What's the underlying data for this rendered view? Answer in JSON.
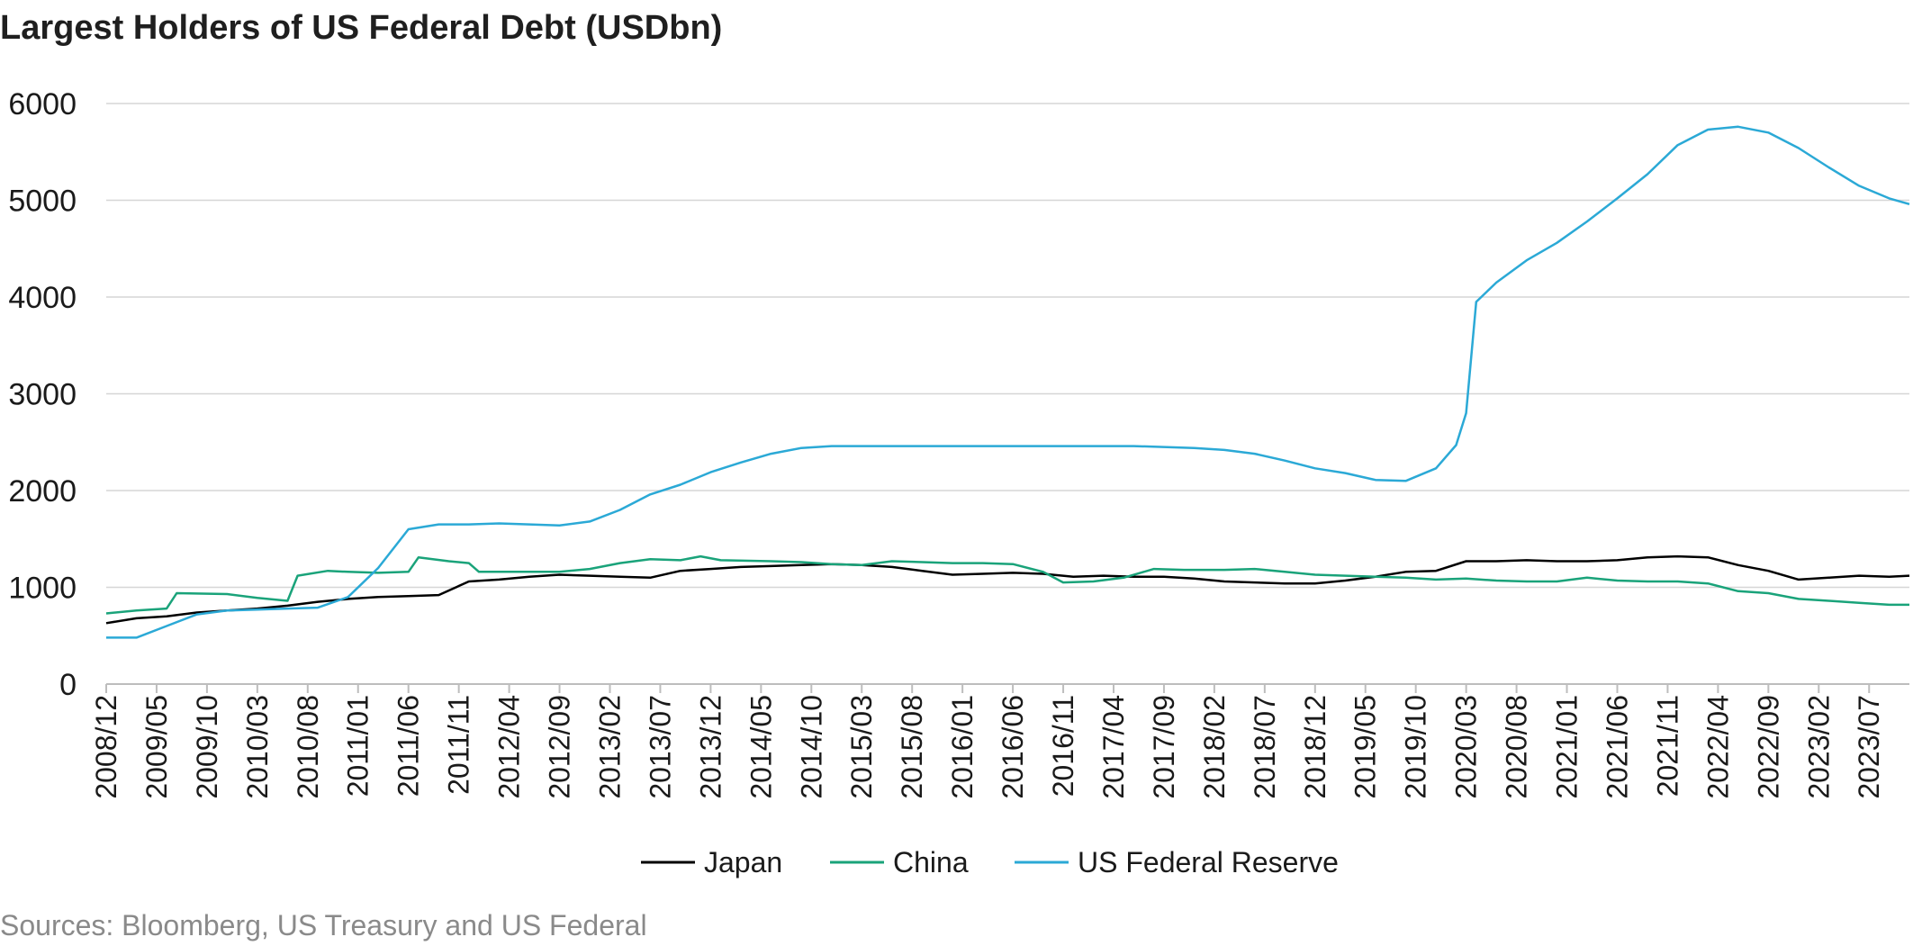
{
  "chart_data": {
    "type": "line",
    "title": "Largest Holders of US Federal Debt (USDbn)",
    "source": "Sources: Bloomberg, US Treasury and US Federal",
    "ylim": [
      0,
      6000
    ],
    "yticks": [
      0,
      1000,
      2000,
      3000,
      4000,
      5000,
      6000
    ],
    "xlim": [
      "2008/12",
      "2023/11"
    ],
    "xticks": [
      "2008/12",
      "2009/05",
      "2009/10",
      "2010/03",
      "2010/08",
      "2011/01",
      "2011/06",
      "2011/11",
      "2012/04",
      "2012/09",
      "2013/02",
      "2013/07",
      "2013/12",
      "2014/05",
      "2014/10",
      "2015/03",
      "2015/08",
      "2016/01",
      "2016/06",
      "2016/11",
      "2017/04",
      "2017/09",
      "2018/02",
      "2018/07",
      "2018/12",
      "2019/05",
      "2019/10",
      "2020/03",
      "2020/08",
      "2021/01",
      "2021/06",
      "2021/11",
      "2022/04",
      "2022/09",
      "2023/02",
      "2023/07"
    ],
    "grid": "horizontal",
    "legend": "bottom",
    "series": [
      {
        "name": "Japan",
        "color": "#000000",
        "points": [
          [
            "2008/12",
            630
          ],
          [
            "2009/03",
            680
          ],
          [
            "2009/06",
            700
          ],
          [
            "2009/09",
            740
          ],
          [
            "2009/12",
            760
          ],
          [
            "2010/03",
            780
          ],
          [
            "2010/06",
            810
          ],
          [
            "2010/09",
            850
          ],
          [
            "2010/12",
            880
          ],
          [
            "2011/03",
            900
          ],
          [
            "2011/06",
            910
          ],
          [
            "2011/09",
            920
          ],
          [
            "2011/12",
            1060
          ],
          [
            "2012/03",
            1080
          ],
          [
            "2012/06",
            1110
          ],
          [
            "2012/09",
            1130
          ],
          [
            "2012/12",
            1120
          ],
          [
            "2013/03",
            1110
          ],
          [
            "2013/06",
            1100
          ],
          [
            "2013/09",
            1170
          ],
          [
            "2013/12",
            1190
          ],
          [
            "2014/03",
            1210
          ],
          [
            "2014/06",
            1220
          ],
          [
            "2014/09",
            1230
          ],
          [
            "2014/12",
            1240
          ],
          [
            "2015/03",
            1230
          ],
          [
            "2015/06",
            1210
          ],
          [
            "2015/09",
            1170
          ],
          [
            "2015/12",
            1130
          ],
          [
            "2016/03",
            1140
          ],
          [
            "2016/06",
            1150
          ],
          [
            "2016/09",
            1140
          ],
          [
            "2016/12",
            1110
          ],
          [
            "2017/03",
            1120
          ],
          [
            "2017/06",
            1110
          ],
          [
            "2017/09",
            1110
          ],
          [
            "2017/12",
            1090
          ],
          [
            "2018/03",
            1060
          ],
          [
            "2018/06",
            1050
          ],
          [
            "2018/09",
            1040
          ],
          [
            "2018/12",
            1040
          ],
          [
            "2019/03",
            1070
          ],
          [
            "2019/06",
            1110
          ],
          [
            "2019/09",
            1160
          ],
          [
            "2019/12",
            1170
          ],
          [
            "2020/03",
            1270
          ],
          [
            "2020/06",
            1270
          ],
          [
            "2020/09",
            1280
          ],
          [
            "2020/12",
            1270
          ],
          [
            "2021/03",
            1270
          ],
          [
            "2021/06",
            1280
          ],
          [
            "2021/09",
            1310
          ],
          [
            "2021/12",
            1320
          ],
          [
            "2022/03",
            1310
          ],
          [
            "2022/06",
            1230
          ],
          [
            "2022/09",
            1170
          ],
          [
            "2022/12",
            1080
          ],
          [
            "2023/03",
            1100
          ],
          [
            "2023/06",
            1120
          ],
          [
            "2023/09",
            1110
          ],
          [
            "2023/11",
            1120
          ]
        ]
      },
      {
        "name": "China",
        "color": "#1aa37a",
        "points": [
          [
            "2008/12",
            730
          ],
          [
            "2009/03",
            760
          ],
          [
            "2009/06",
            780
          ],
          [
            "2009/07",
            940
          ],
          [
            "2009/12",
            930
          ],
          [
            "2010/03",
            890
          ],
          [
            "2010/06",
            860
          ],
          [
            "2010/07",
            1120
          ],
          [
            "2010/10",
            1170
          ],
          [
            "2010/12",
            1160
          ],
          [
            "2011/03",
            1150
          ],
          [
            "2011/06",
            1160
          ],
          [
            "2011/07",
            1310
          ],
          [
            "2011/10",
            1270
          ],
          [
            "2011/12",
            1250
          ],
          [
            "2012/01",
            1160
          ],
          [
            "2012/06",
            1160
          ],
          [
            "2012/09",
            1160
          ],
          [
            "2012/12",
            1190
          ],
          [
            "2013/03",
            1250
          ],
          [
            "2013/06",
            1290
          ],
          [
            "2013/09",
            1280
          ],
          [
            "2013/11",
            1320
          ],
          [
            "2014/01",
            1280
          ],
          [
            "2014/06",
            1270
          ],
          [
            "2014/09",
            1260
          ],
          [
            "2014/12",
            1240
          ],
          [
            "2015/03",
            1230
          ],
          [
            "2015/06",
            1270
          ],
          [
            "2015/09",
            1260
          ],
          [
            "2015/12",
            1250
          ],
          [
            "2016/03",
            1250
          ],
          [
            "2016/06",
            1240
          ],
          [
            "2016/09",
            1160
          ],
          [
            "2016/11",
            1050
          ],
          [
            "2017/02",
            1060
          ],
          [
            "2017/05",
            1100
          ],
          [
            "2017/08",
            1190
          ],
          [
            "2017/11",
            1180
          ],
          [
            "2018/03",
            1180
          ],
          [
            "2018/06",
            1190
          ],
          [
            "2018/09",
            1160
          ],
          [
            "2018/12",
            1130
          ],
          [
            "2019/03",
            1120
          ],
          [
            "2019/06",
            1110
          ],
          [
            "2019/09",
            1100
          ],
          [
            "2019/12",
            1080
          ],
          [
            "2020/03",
            1090
          ],
          [
            "2020/06",
            1070
          ],
          [
            "2020/09",
            1060
          ],
          [
            "2020/12",
            1060
          ],
          [
            "2021/03",
            1100
          ],
          [
            "2021/06",
            1070
          ],
          [
            "2021/09",
            1060
          ],
          [
            "2021/12",
            1060
          ],
          [
            "2022/03",
            1040
          ],
          [
            "2022/06",
            960
          ],
          [
            "2022/09",
            940
          ],
          [
            "2022/12",
            880
          ],
          [
            "2023/03",
            860
          ],
          [
            "2023/06",
            840
          ],
          [
            "2023/09",
            820
          ],
          [
            "2023/11",
            820
          ]
        ]
      },
      {
        "name": "US Federal Reserve",
        "color": "#2ba9d6",
        "points": [
          [
            "2008/12",
            480
          ],
          [
            "2009/03",
            480
          ],
          [
            "2009/06",
            600
          ],
          [
            "2009/09",
            720
          ],
          [
            "2009/12",
            760
          ],
          [
            "2010/03",
            770
          ],
          [
            "2010/06",
            780
          ],
          [
            "2010/09",
            790
          ],
          [
            "2010/12",
            900
          ],
          [
            "2011/03",
            1200
          ],
          [
            "2011/06",
            1600
          ],
          [
            "2011/09",
            1650
          ],
          [
            "2011/12",
            1650
          ],
          [
            "2012/03",
            1660
          ],
          [
            "2012/06",
            1650
          ],
          [
            "2012/09",
            1640
          ],
          [
            "2012/12",
            1680
          ],
          [
            "2013/03",
            1800
          ],
          [
            "2013/06",
            1960
          ],
          [
            "2013/09",
            2060
          ],
          [
            "2013/12",
            2190
          ],
          [
            "2014/03",
            2290
          ],
          [
            "2014/06",
            2380
          ],
          [
            "2014/09",
            2440
          ],
          [
            "2014/12",
            2460
          ],
          [
            "2015/06",
            2460
          ],
          [
            "2016/06",
            2460
          ],
          [
            "2017/06",
            2460
          ],
          [
            "2017/12",
            2440
          ],
          [
            "2018/03",
            2420
          ],
          [
            "2018/06",
            2380
          ],
          [
            "2018/09",
            2310
          ],
          [
            "2018/12",
            2230
          ],
          [
            "2019/03",
            2180
          ],
          [
            "2019/06",
            2110
          ],
          [
            "2019/09",
            2100
          ],
          [
            "2019/12",
            2230
          ],
          [
            "2020/02",
            2470
          ],
          [
            "2020/03",
            2800
          ],
          [
            "2020/04",
            3950
          ],
          [
            "2020/06",
            4150
          ],
          [
            "2020/09",
            4380
          ],
          [
            "2020/12",
            4560
          ],
          [
            "2021/03",
            4780
          ],
          [
            "2021/06",
            5020
          ],
          [
            "2021/09",
            5270
          ],
          [
            "2021/12",
            5570
          ],
          [
            "2022/03",
            5730
          ],
          [
            "2022/06",
            5760
          ],
          [
            "2022/09",
            5700
          ],
          [
            "2022/12",
            5540
          ],
          [
            "2023/03",
            5340
          ],
          [
            "2023/06",
            5150
          ],
          [
            "2023/09",
            5020
          ],
          [
            "2023/11",
            4960
          ]
        ]
      }
    ]
  }
}
